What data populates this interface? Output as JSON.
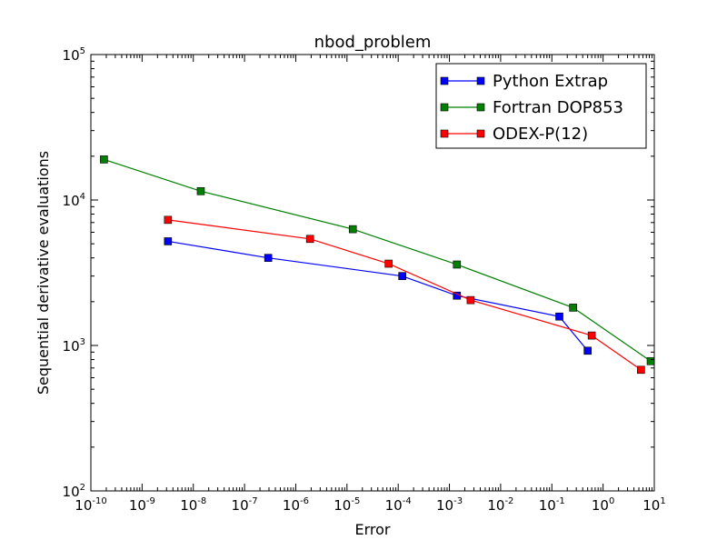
{
  "chart_data": {
    "type": "line",
    "title": "nbod_problem",
    "xlabel": "Error",
    "ylabel": "Sequential derivative evaluations",
    "xscale": "log",
    "yscale": "log",
    "xlim": [
      1e-10,
      10
    ],
    "ylim": [
      100,
      100000
    ],
    "grid": false,
    "legend_position": "top-right",
    "x_tick_labels": [
      {
        "base": "10",
        "exp": "-10"
      },
      {
        "base": "10",
        "exp": "-9"
      },
      {
        "base": "10",
        "exp": "-8"
      },
      {
        "base": "10",
        "exp": "-7"
      },
      {
        "base": "10",
        "exp": "-6"
      },
      {
        "base": "10",
        "exp": "-5"
      },
      {
        "base": "10",
        "exp": "-4"
      },
      {
        "base": "10",
        "exp": "-3"
      },
      {
        "base": "10",
        "exp": "-2"
      },
      {
        "base": "10",
        "exp": "-1"
      },
      {
        "base": "10",
        "exp": "0"
      },
      {
        "base": "10",
        "exp": "1"
      }
    ],
    "y_tick_labels": [
      {
        "base": "10",
        "exp": "2"
      },
      {
        "base": "10",
        "exp": "3"
      },
      {
        "base": "10",
        "exp": "4"
      },
      {
        "base": "10",
        "exp": "5"
      }
    ],
    "series": [
      {
        "name": "Python Extrap",
        "color": "#0000ff",
        "marker": "square",
        "points": [
          [
            3.2e-09,
            5200
          ],
          [
            2.9e-07,
            4000
          ],
          [
            0.00012,
            3000
          ],
          [
            0.0014,
            2200
          ],
          [
            0.14,
            1580
          ],
          [
            0.5,
            920
          ]
        ]
      },
      {
        "name": "Fortran DOP853",
        "color": "#008000",
        "marker": "square",
        "points": [
          [
            1.8e-10,
            19000
          ],
          [
            1.4e-08,
            11500
          ],
          [
            1.3e-05,
            6300
          ],
          [
            0.0014,
            3600
          ],
          [
            0.26,
            1820
          ],
          [
            8.5,
            780
          ]
        ]
      },
      {
        "name": "ODEX-P(12)",
        "color": "#ff0000",
        "marker": "square",
        "points": [
          [
            3.2e-09,
            7300
          ],
          [
            1.9e-06,
            5400
          ],
          [
            6.5e-05,
            3650
          ],
          [
            0.0026,
            2050
          ],
          [
            0.6,
            1170
          ],
          [
            5.5,
            680
          ]
        ]
      }
    ]
  }
}
